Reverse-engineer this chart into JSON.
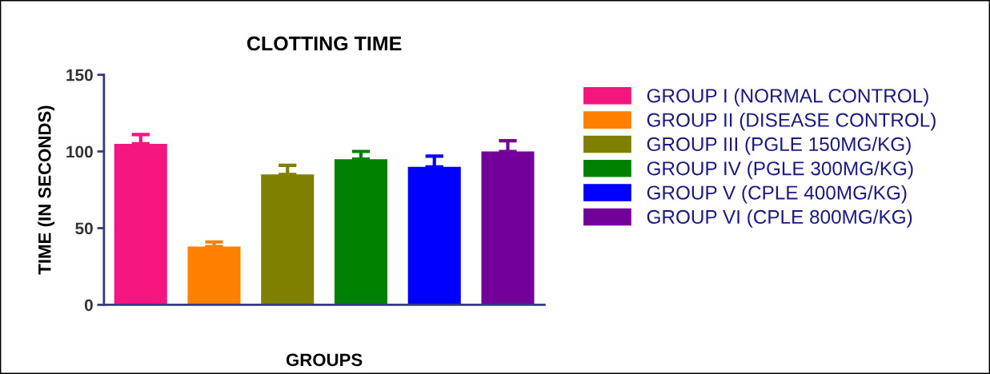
{
  "chart_data": {
    "type": "bar",
    "title": "CLOTTING TIME",
    "xlabel": "GROUPS",
    "ylabel": "TIME (IN SECONDS)",
    "categories": [
      null,
      null,
      null,
      null,
      null,
      null
    ],
    "series": [
      {
        "name": "GROUP I (NORMAL CONTROL)",
        "color": "#f5157f",
        "values": [
          105,
          null,
          null,
          null,
          null,
          null
        ],
        "errors": [
          [
            105,
            111
          ],
          null,
          null,
          null,
          null,
          null
        ]
      },
      {
        "name": "GROUP II (DISEASE CONTROL)",
        "color": "#ff8000",
        "values": [
          null,
          38,
          null,
          null,
          null,
          null
        ],
        "errors": [
          null,
          [
            38,
            41
          ],
          null,
          null,
          null,
          null
        ]
      },
      {
        "name": "GROUP III (PGLE 150MG/KG)",
        "color": "#808000",
        "values": [
          null,
          null,
          85,
          null,
          null,
          null
        ],
        "errors": [
          null,
          null,
          [
            85,
            91
          ],
          null,
          null,
          null
        ]
      },
      {
        "name": "GROUP IV (PGLE 300MG/KG)",
        "color": "#008000",
        "values": [
          null,
          null,
          null,
          95,
          null,
          null
        ],
        "errors": [
          null,
          null,
          null,
          [
            95,
            100
          ],
          null,
          null
        ]
      },
      {
        "name": "GROUP V (CPLE 400MG/KG)",
        "color": "#0000ff",
        "values": [
          null,
          null,
          null,
          null,
          90,
          null
        ],
        "errors": [
          null,
          null,
          null,
          null,
          [
            90,
            97
          ],
          null
        ]
      },
      {
        "name": "GROUP VI (CPLE 800MG/KG)",
        "color": "#730099",
        "values": [
          null,
          null,
          null,
          null,
          null,
          100
        ],
        "errors": [
          null,
          null,
          null,
          null,
          null,
          [
            100,
            107
          ]
        ]
      }
    ],
    "ylim": [
      0,
      150
    ],
    "yticks": [
      0,
      50,
      100,
      150
    ],
    "grid": false,
    "legend": "right"
  }
}
